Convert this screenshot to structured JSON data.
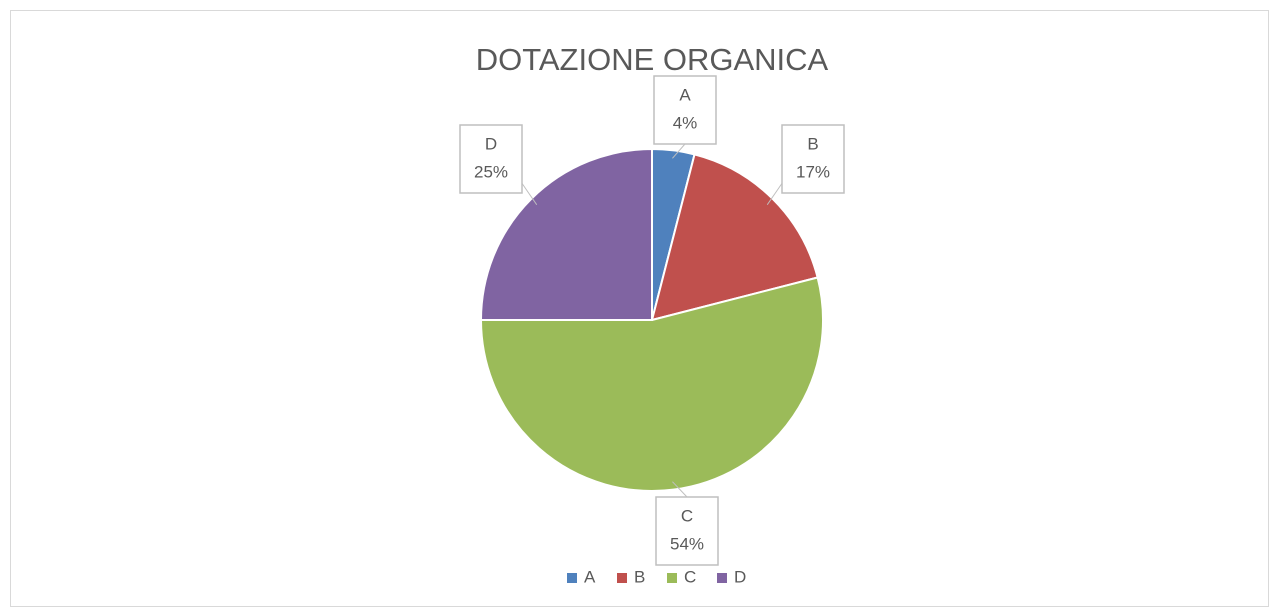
{
  "chart_data": {
    "type": "pie",
    "title": "DOTAZIONE ORGANICA",
    "categories": [
      "A",
      "B",
      "C",
      "D"
    ],
    "values": [
      4,
      17,
      54,
      25
    ],
    "value_labels": [
      "4%",
      "17%",
      "54%",
      "25%"
    ],
    "colors": [
      "#4f81bd",
      "#c0504d",
      "#9bbb59",
      "#8064a2"
    ],
    "legend": "bottom"
  }
}
